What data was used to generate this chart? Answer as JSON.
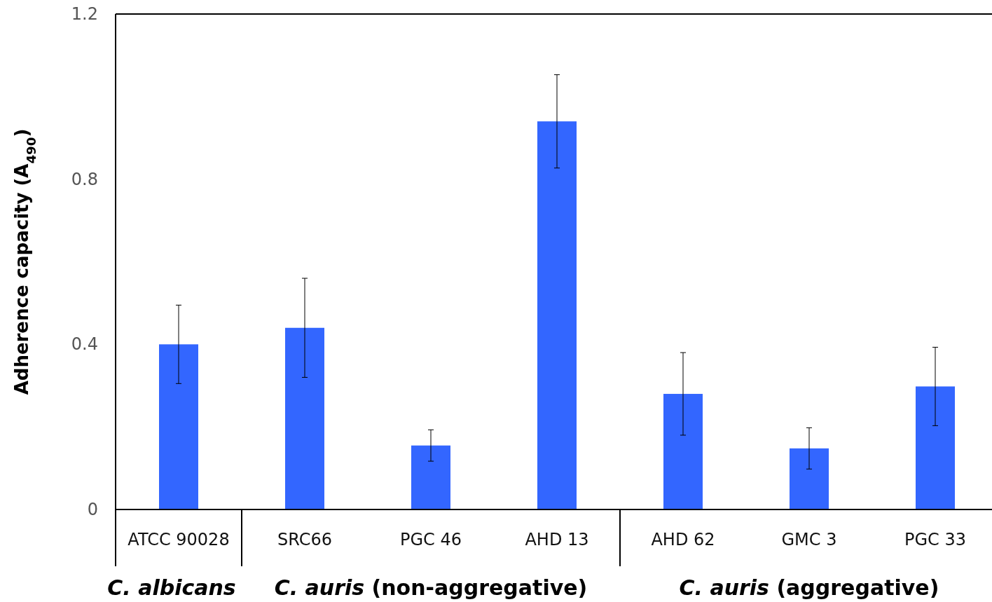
{
  "chart_data": {
    "type": "bar",
    "ylabel": "Adherence capacity (A$_{490}$)",
    "categories": [
      "ATCC 90028",
      "SRC66",
      "PGC 46",
      "AHD 13",
      "AHD 62",
      "GMC 3",
      "PGC 33"
    ],
    "values": [
      0.4,
      0.44,
      0.155,
      0.94,
      0.28,
      0.148,
      0.298
    ],
    "errors": [
      0.095,
      0.12,
      0.038,
      0.113,
      0.1,
      0.05,
      0.095
    ],
    "color": "#3366ff",
    "ylim": [
      0,
      1.2
    ],
    "yticks": [
      0,
      0.4,
      0.8,
      1.2
    ],
    "grid": false,
    "annotations": [
      "C. albicans",
      "C. auris (non-aggregative)",
      "C. auris (aggregative)"
    ]
  }
}
